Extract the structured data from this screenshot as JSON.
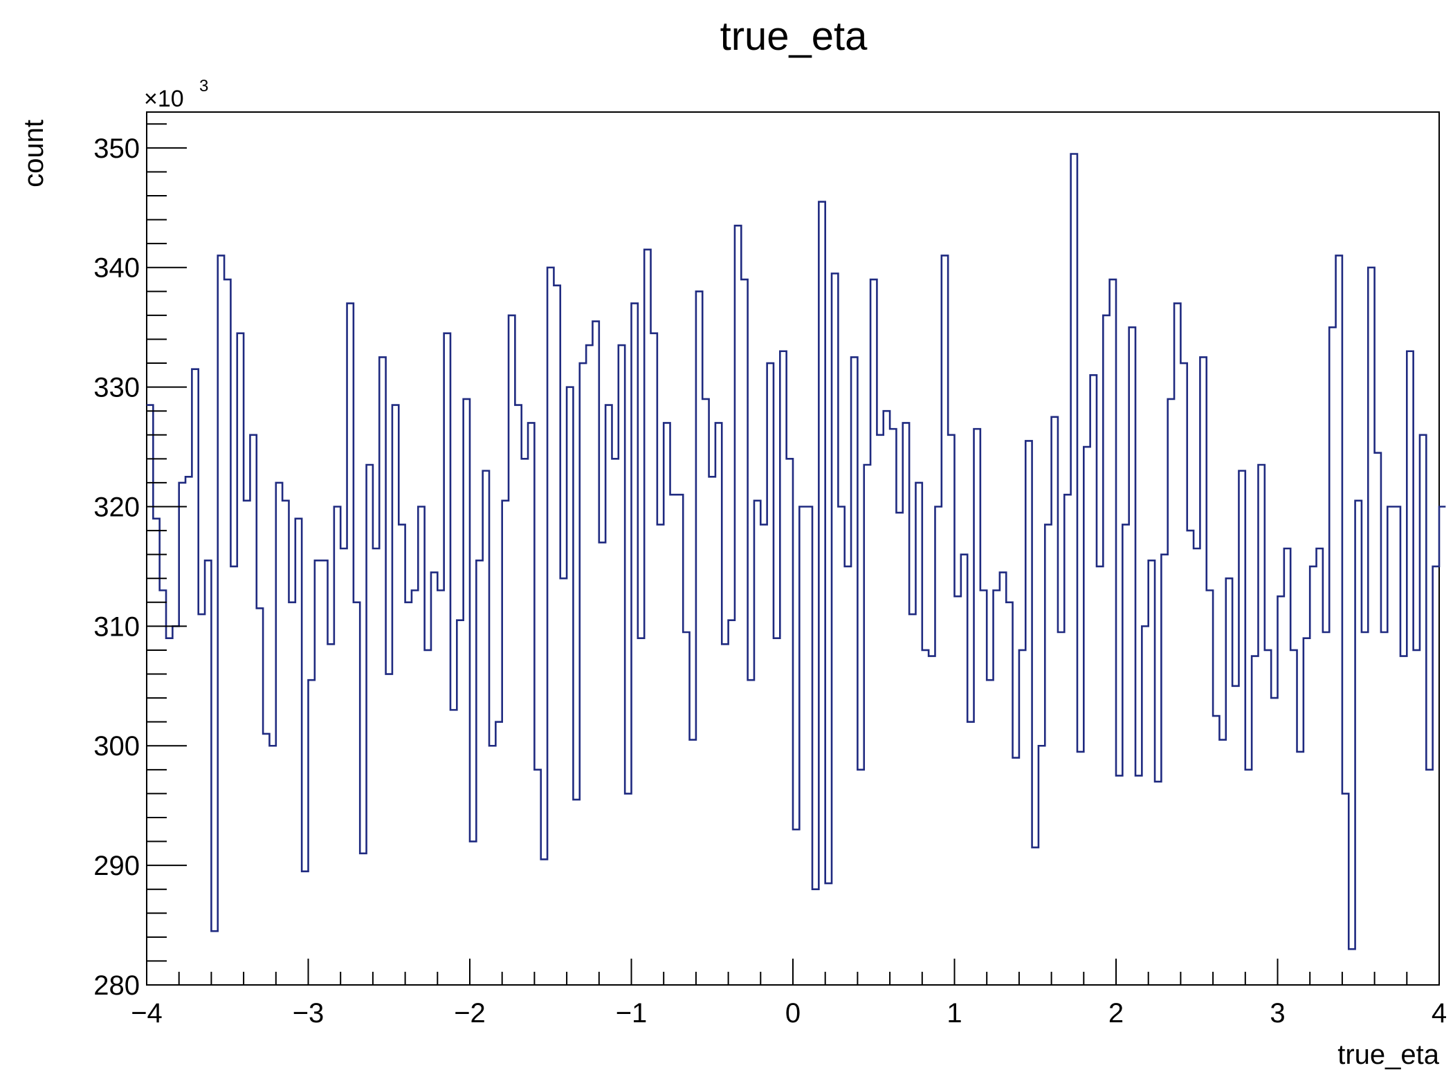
{
  "chart_data": {
    "type": "histogram",
    "title": "true_eta",
    "xlabel": "true_eta",
    "ylabel": "count",
    "y_multiplier_label": "×10",
    "y_multiplier_exponent": "3",
    "xlim": [
      -4,
      4
    ],
    "ylim": [
      280,
      353
    ],
    "x_ticks": [
      -4,
      -3,
      -2,
      -1,
      0,
      1,
      2,
      3,
      4
    ],
    "x_tick_labels": [
      "−4",
      "−3",
      "−2",
      "−1",
      "0",
      "1",
      "2",
      "3",
      "4"
    ],
    "y_ticks": [
      280,
      290,
      300,
      310,
      320,
      330,
      340,
      350
    ],
    "y_tick_labels": [
      "280",
      "290",
      "300",
      "310",
      "320",
      "330",
      "340",
      "350"
    ],
    "bin_width": 0.04,
    "values": [
      328.5,
      319,
      313,
      309,
      310,
      322,
      322.5,
      331.5,
      311,
      315.5,
      284.5,
      341,
      339,
      315,
      334.5,
      320.5,
      326,
      311.5,
      301,
      300,
      322,
      320.5,
      312,
      319,
      289.5,
      305.5,
      315.5,
      315.5,
      308.5,
      320,
      316.5,
      337,
      312,
      291,
      323.5,
      316.5,
      332.5,
      306,
      328.5,
      318.5,
      312,
      313,
      320,
      308,
      314.5,
      313,
      334.5,
      303,
      310.5,
      329,
      292,
      315.5,
      323,
      300,
      302,
      320.5,
      336,
      328.5,
      324,
      327,
      298,
      290.5,
      340,
      338.5,
      314,
      330,
      295.5,
      332,
      333.5,
      335.5,
      317,
      328.5,
      324,
      333.5,
      296,
      337,
      309,
      341.5,
      334.5,
      318.5,
      327,
      321,
      321,
      309.5,
      300.5,
      338,
      329,
      322.5,
      327,
      308.5,
      310.5,
      343.5,
      339,
      305.5,
      320.5,
      318.5,
      332,
      309,
      333,
      324,
      293,
      320,
      320,
      288,
      345.5,
      288.5,
      339.5,
      320,
      315,
      332.5,
      298,
      323.5,
      339,
      326,
      328,
      326.5,
      319.5,
      327,
      311,
      322,
      308,
      307.5,
      320,
      341,
      326,
      312.5,
      316,
      302,
      326.5,
      313,
      305.5,
      313,
      314.5,
      312,
      299,
      308,
      325.5,
      291.5,
      300,
      318.5,
      327.5,
      309.5,
      321,
      349.5,
      299.5,
      325,
      331,
      315,
      336,
      339,
      297.5,
      318.5,
      335,
      297.5,
      310,
      315.5,
      297,
      316,
      329,
      337,
      332,
      318,
      316.5,
      332.5,
      313,
      302.5,
      300.5,
      314,
      305,
      323,
      298,
      307.5,
      323.5,
      308,
      304,
      312.5,
      316.5,
      308,
      299.5,
      309,
      315,
      316.5,
      309.5,
      335,
      341,
      296,
      283,
      320.5,
      309.5,
      340,
      324.5,
      309.5,
      320,
      320,
      307.5,
      333,
      308,
      326,
      298,
      315,
      320
    ],
    "colors": {
      "line": "#1f2a80",
      "frame": "#000000",
      "background": "#ffffff"
    },
    "grid": false,
    "legend": "none"
  }
}
